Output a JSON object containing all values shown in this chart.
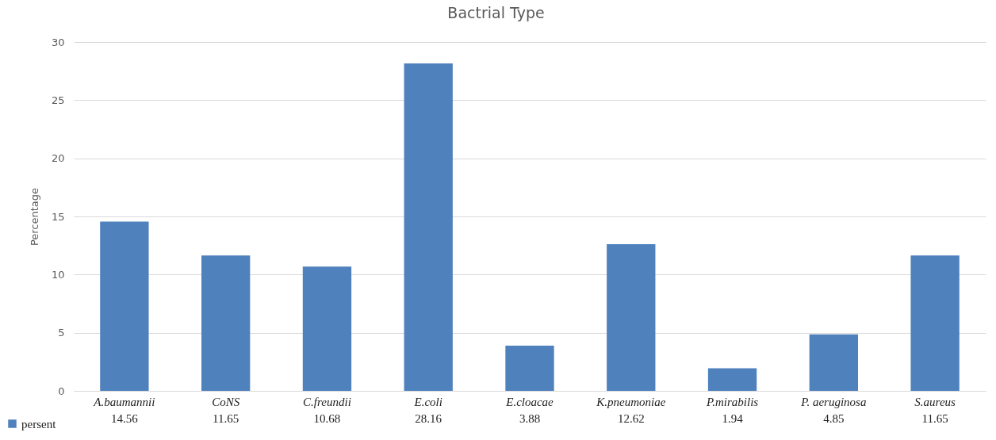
{
  "chart_data": {
    "type": "bar",
    "title": "Bactrial Type",
    "ylabel": "Percentage",
    "categories": [
      "A.baumannii",
      "CoNS",
      "C.freundii",
      "E.coli",
      "E.cloacae",
      "K.pneumoniae",
      "P.mirabilis",
      "P. aeruginosa",
      "S.aureus"
    ],
    "series": [
      {
        "name": "persent",
        "color": "#4f81bd",
        "values": [
          14.56,
          11.65,
          10.68,
          28.16,
          3.88,
          12.62,
          1.94,
          4.85,
          11.65
        ]
      }
    ],
    "ylim": [
      0,
      30
    ],
    "yticks": [
      0,
      5,
      10,
      15,
      20,
      25,
      30
    ],
    "grid": "y",
    "legend": "bottom left",
    "data_labels": true
  }
}
